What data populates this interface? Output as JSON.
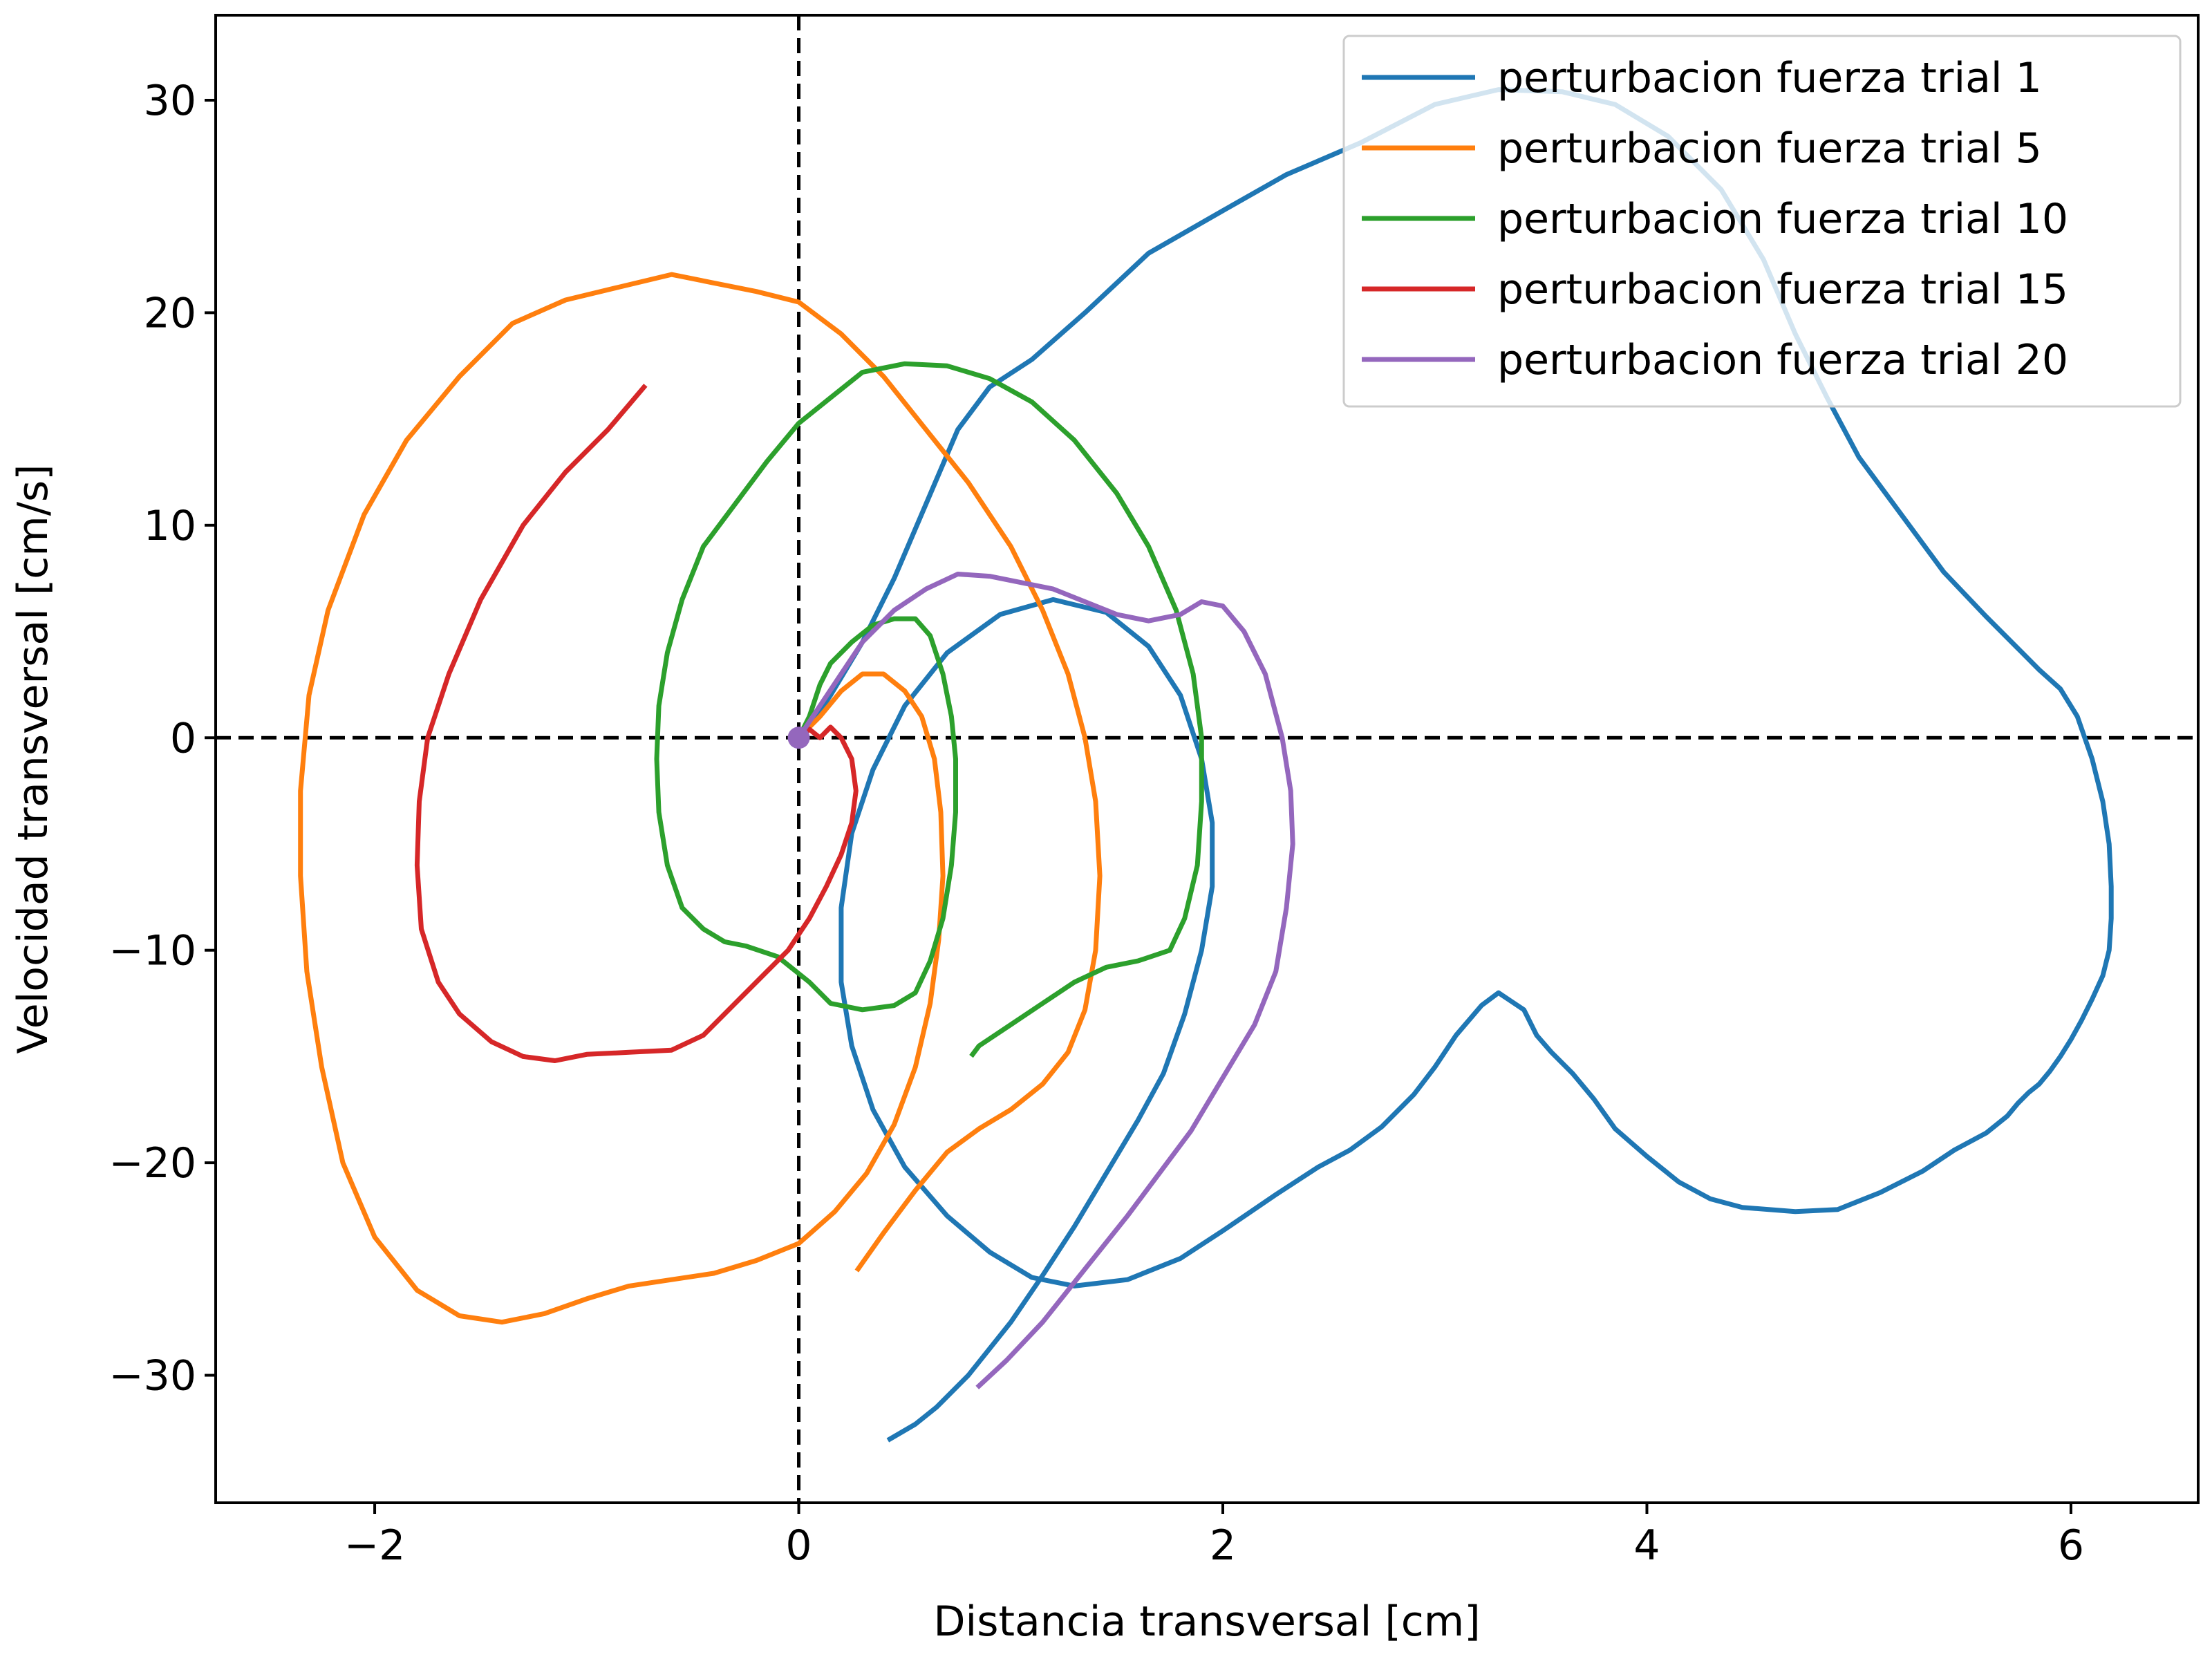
{
  "chart_data": {
    "type": "line",
    "title": "",
    "xlabel": "Distancia transversal [cm]",
    "ylabel": "Velocidad transversal [cm/s]",
    "xlim": [
      -2.75,
      6.6
    ],
    "ylim": [
      -36,
      34
    ],
    "x_ticks": [
      -2,
      0,
      2,
      4,
      6
    ],
    "x_tick_labels": [
      "−2",
      "0",
      "2",
      "4",
      "6"
    ],
    "y_ticks": [
      -30,
      -20,
      -10,
      0,
      10,
      20,
      30
    ],
    "y_tick_labels": [
      "−30",
      "−20",
      "−10",
      "0",
      "10",
      "20",
      "30"
    ],
    "grid": false,
    "reference_lines": {
      "x0": true,
      "y0": true,
      "style": "dashed",
      "color": "#000000"
    },
    "start_marker": {
      "x": 0,
      "y": 0,
      "color": "#9467bd"
    },
    "legend_position": "top-right",
    "series": [
      {
        "name": "perturbacion fuerza trial 1",
        "color": "#1f77b4",
        "points": [
          [
            0,
            0
          ],
          [
            0.05,
            0.5
          ],
          [
            0.15,
            2
          ],
          [
            0.3,
            4.5
          ],
          [
            0.45,
            7.5
          ],
          [
            0.6,
            11
          ],
          [
            0.75,
            14.5
          ],
          [
            0.9,
            16.5
          ],
          [
            1.1,
            17.8
          ],
          [
            1.35,
            20
          ],
          [
            1.65,
            22.8
          ],
          [
            2,
            24.8
          ],
          [
            2.3,
            26.5
          ],
          [
            2.65,
            28
          ],
          [
            3,
            29.8
          ],
          [
            3.3,
            30.5
          ],
          [
            3.6,
            30.4
          ],
          [
            3.85,
            29.8
          ],
          [
            4.1,
            28.3
          ],
          [
            4.35,
            25.8
          ],
          [
            4.55,
            22.5
          ],
          [
            4.7,
            19
          ],
          [
            4.85,
            16
          ],
          [
            5,
            13.2
          ],
          [
            5.2,
            10.5
          ],
          [
            5.4,
            7.8
          ],
          [
            5.6,
            5.7
          ],
          [
            5.75,
            4.2
          ],
          [
            5.85,
            3.2
          ],
          [
            5.95,
            2.3
          ],
          [
            6.03,
            1
          ],
          [
            6.1,
            -1
          ],
          [
            6.15,
            -3
          ],
          [
            6.18,
            -5
          ],
          [
            6.19,
            -7
          ],
          [
            6.19,
            -8.5
          ],
          [
            6.18,
            -10
          ],
          [
            6.15,
            -11.2
          ],
          [
            6.1,
            -12.3
          ],
          [
            6.05,
            -13.3
          ],
          [
            6,
            -14.2
          ],
          [
            5.95,
            -15
          ],
          [
            5.9,
            -15.7
          ],
          [
            5.85,
            -16.3
          ],
          [
            5.8,
            -16.7
          ],
          [
            5.75,
            -17.2
          ],
          [
            5.7,
            -17.8
          ],
          [
            5.6,
            -18.6
          ],
          [
            5.45,
            -19.4
          ],
          [
            5.3,
            -20.4
          ],
          [
            5.1,
            -21.4
          ],
          [
            4.9,
            -22.2
          ],
          [
            4.7,
            -22.3
          ],
          [
            4.45,
            -22.1
          ],
          [
            4.3,
            -21.7
          ],
          [
            4.15,
            -20.9
          ],
          [
            4,
            -19.7
          ],
          [
            3.85,
            -18.4
          ],
          [
            3.75,
            -17
          ],
          [
            3.65,
            -15.8
          ],
          [
            3.55,
            -14.8
          ],
          [
            3.48,
            -14
          ],
          [
            3.42,
            -12.8
          ],
          [
            3.36,
            -12.4
          ],
          [
            3.3,
            -12
          ],
          [
            3.22,
            -12.6
          ],
          [
            3.1,
            -14
          ],
          [
            3,
            -15.5
          ],
          [
            2.9,
            -16.8
          ],
          [
            2.75,
            -18.3
          ],
          [
            2.6,
            -19.4
          ],
          [
            2.45,
            -20.2
          ],
          [
            2.25,
            -21.5
          ],
          [
            2,
            -23.2
          ],
          [
            1.8,
            -24.5
          ],
          [
            1.55,
            -25.5
          ],
          [
            1.3,
            -25.8
          ],
          [
            1.1,
            -25.4
          ],
          [
            0.9,
            -24.2
          ],
          [
            0.7,
            -22.5
          ],
          [
            0.5,
            -20.2
          ],
          [
            0.35,
            -17.5
          ],
          [
            0.25,
            -14.5
          ],
          [
            0.2,
            -11.5
          ],
          [
            0.2,
            -8
          ],
          [
            0.25,
            -4.5
          ],
          [
            0.35,
            -1.5
          ],
          [
            0.5,
            1.5
          ],
          [
            0.7,
            4
          ],
          [
            0.95,
            5.8
          ],
          [
            1.2,
            6.5
          ],
          [
            1.45,
            5.9
          ],
          [
            1.65,
            4.3
          ],
          [
            1.8,
            2
          ],
          [
            1.9,
            -1
          ],
          [
            1.95,
            -4
          ],
          [
            1.95,
            -7
          ],
          [
            1.9,
            -10
          ],
          [
            1.82,
            -13
          ],
          [
            1.72,
            -15.8
          ],
          [
            1.6,
            -18
          ],
          [
            1.45,
            -20.5
          ],
          [
            1.3,
            -23
          ],
          [
            1.15,
            -25.3
          ],
          [
            1,
            -27.5
          ],
          [
            0.8,
            -30
          ],
          [
            0.65,
            -31.5
          ],
          [
            0.55,
            -32.3
          ],
          [
            0.43,
            -33
          ]
        ]
      },
      {
        "name": "perturbacion fuerza trial 5",
        "color": "#ff7f0e",
        "points": [
          [
            0,
            0
          ],
          [
            0.1,
            1
          ],
          [
            0.2,
            2.2
          ],
          [
            0.3,
            3
          ],
          [
            0.4,
            3
          ],
          [
            0.5,
            2.2
          ],
          [
            0.58,
            1
          ],
          [
            0.64,
            -1
          ],
          [
            0.67,
            -3.5
          ],
          [
            0.68,
            -6.5
          ],
          [
            0.66,
            -9.5
          ],
          [
            0.62,
            -12.5
          ],
          [
            0.55,
            -15.5
          ],
          [
            0.45,
            -18.2
          ],
          [
            0.32,
            -20.5
          ],
          [
            0.17,
            -22.3
          ],
          [
            0,
            -23.8
          ],
          [
            -0.2,
            -24.6
          ],
          [
            -0.4,
            -25.2
          ],
          [
            -0.6,
            -25.5
          ],
          [
            -0.8,
            -25.8
          ],
          [
            -1,
            -26.4
          ],
          [
            -1.2,
            -27.1
          ],
          [
            -1.4,
            -27.5
          ],
          [
            -1.6,
            -27.2
          ],
          [
            -1.8,
            -26
          ],
          [
            -2,
            -23.5
          ],
          [
            -2.15,
            -20
          ],
          [
            -2.25,
            -15.5
          ],
          [
            -2.32,
            -11
          ],
          [
            -2.35,
            -6.5
          ],
          [
            -2.35,
            -2.5
          ],
          [
            -2.31,
            2
          ],
          [
            -2.22,
            6
          ],
          [
            -2.05,
            10.5
          ],
          [
            -1.85,
            14
          ],
          [
            -1.6,
            17
          ],
          [
            -1.35,
            19.5
          ],
          [
            -1.1,
            20.6
          ],
          [
            -0.85,
            21.2
          ],
          [
            -0.6,
            21.8
          ],
          [
            -0.4,
            21.4
          ],
          [
            -0.2,
            21
          ],
          [
            0,
            20.5
          ],
          [
            0.2,
            19
          ],
          [
            0.4,
            17
          ],
          [
            0.6,
            14.5
          ],
          [
            0.8,
            12
          ],
          [
            1,
            9
          ],
          [
            1.15,
            6
          ],
          [
            1.27,
            3
          ],
          [
            1.35,
            0
          ],
          [
            1.4,
            -3
          ],
          [
            1.42,
            -6.5
          ],
          [
            1.4,
            -10
          ],
          [
            1.35,
            -12.8
          ],
          [
            1.27,
            -14.8
          ],
          [
            1.15,
            -16.3
          ],
          [
            1,
            -17.5
          ],
          [
            0.85,
            -18.4
          ],
          [
            0.7,
            -19.5
          ],
          [
            0.55,
            -21.3
          ],
          [
            0.4,
            -23.3
          ],
          [
            0.28,
            -25
          ]
        ]
      },
      {
        "name": "perturbacion fuerza trial 10",
        "color": "#2ca02c",
        "points": [
          [
            0,
            0
          ],
          [
            0.05,
            1
          ],
          [
            0.1,
            2.5
          ],
          [
            0.15,
            3.5
          ],
          [
            0.25,
            4.5
          ],
          [
            0.35,
            5.3
          ],
          [
            0.45,
            5.6
          ],
          [
            0.55,
            5.6
          ],
          [
            0.62,
            4.8
          ],
          [
            0.68,
            3
          ],
          [
            0.72,
            1
          ],
          [
            0.74,
            -1
          ],
          [
            0.74,
            -3.5
          ],
          [
            0.72,
            -6
          ],
          [
            0.68,
            -8.5
          ],
          [
            0.62,
            -10.5
          ],
          [
            0.55,
            -12
          ],
          [
            0.45,
            -12.6
          ],
          [
            0.3,
            -12.8
          ],
          [
            0.15,
            -12.5
          ],
          [
            0.05,
            -11.5
          ],
          [
            -0.1,
            -10.3
          ],
          [
            -0.25,
            -9.8
          ],
          [
            -0.35,
            -9.6
          ],
          [
            -0.45,
            -9
          ],
          [
            -0.55,
            -8
          ],
          [
            -0.62,
            -6
          ],
          [
            -0.66,
            -3.5
          ],
          [
            -0.67,
            -1
          ],
          [
            -0.66,
            1.5
          ],
          [
            -0.62,
            4
          ],
          [
            -0.55,
            6.5
          ],
          [
            -0.45,
            9
          ],
          [
            -0.3,
            11
          ],
          [
            -0.15,
            13
          ],
          [
            0,
            14.8
          ],
          [
            0.15,
            16
          ],
          [
            0.3,
            17.2
          ],
          [
            0.5,
            17.6
          ],
          [
            0.7,
            17.5
          ],
          [
            0.9,
            16.9
          ],
          [
            1.1,
            15.8
          ],
          [
            1.3,
            14
          ],
          [
            1.5,
            11.5
          ],
          [
            1.65,
            9
          ],
          [
            1.78,
            6
          ],
          [
            1.86,
            3
          ],
          [
            1.9,
            0
          ],
          [
            1.9,
            -3
          ],
          [
            1.88,
            -6
          ],
          [
            1.82,
            -8.5
          ],
          [
            1.75,
            -10
          ],
          [
            1.6,
            -10.5
          ],
          [
            1.45,
            -10.8
          ],
          [
            1.3,
            -11.5
          ],
          [
            1.15,
            -12.5
          ],
          [
            1,
            -13.5
          ],
          [
            0.85,
            -14.5
          ],
          [
            0.82,
            -14.9
          ]
        ]
      },
      {
        "name": "perturbacion fuerza trial 15",
        "color": "#d62728",
        "points": [
          [
            0,
            0
          ],
          [
            0.05,
            0.4
          ],
          [
            0.1,
            0
          ],
          [
            0.15,
            0.5
          ],
          [
            0.2,
            0
          ],
          [
            0.25,
            -1
          ],
          [
            0.27,
            -2.5
          ],
          [
            0.25,
            -4
          ],
          [
            0.2,
            -5.5
          ],
          [
            0.13,
            -7
          ],
          [
            0.05,
            -8.5
          ],
          [
            -0.05,
            -10
          ],
          [
            -0.15,
            -11
          ],
          [
            -0.3,
            -12.5
          ],
          [
            -0.45,
            -14
          ],
          [
            -0.6,
            -14.7
          ],
          [
            -0.8,
            -14.8
          ],
          [
            -1,
            -14.9
          ],
          [
            -1.15,
            -15.2
          ],
          [
            -1.3,
            -15
          ],
          [
            -1.45,
            -14.3
          ],
          [
            -1.6,
            -13
          ],
          [
            -1.7,
            -11.5
          ],
          [
            -1.78,
            -9
          ],
          [
            -1.8,
            -6
          ],
          [
            -1.79,
            -3
          ],
          [
            -1.75,
            0
          ],
          [
            -1.65,
            3
          ],
          [
            -1.5,
            6.5
          ],
          [
            -1.3,
            10
          ],
          [
            -1.1,
            12.5
          ],
          [
            -0.9,
            14.5
          ],
          [
            -0.73,
            16.5
          ]
        ]
      },
      {
        "name": "perturbacion fuerza trial 20",
        "color": "#9467bd",
        "points": [
          [
            0,
            0
          ],
          [
            0.1,
            1.5
          ],
          [
            0.2,
            3
          ],
          [
            0.3,
            4.5
          ],
          [
            0.45,
            6
          ],
          [
            0.6,
            7
          ],
          [
            0.75,
            7.7
          ],
          [
            0.9,
            7.6
          ],
          [
            1.05,
            7.3
          ],
          [
            1.2,
            7
          ],
          [
            1.35,
            6.4
          ],
          [
            1.5,
            5.8
          ],
          [
            1.65,
            5.5
          ],
          [
            1.8,
            5.8
          ],
          [
            1.9,
            6.4
          ],
          [
            2,
            6.2
          ],
          [
            2.1,
            5
          ],
          [
            2.2,
            3
          ],
          [
            2.28,
            0
          ],
          [
            2.32,
            -2.5
          ],
          [
            2.33,
            -5
          ],
          [
            2.3,
            -8
          ],
          [
            2.25,
            -11
          ],
          [
            2.15,
            -13.5
          ],
          [
            2,
            -16
          ],
          [
            1.85,
            -18.5
          ],
          [
            1.7,
            -20.5
          ],
          [
            1.55,
            -22.5
          ],
          [
            1.35,
            -25
          ],
          [
            1.15,
            -27.5
          ],
          [
            0.98,
            -29.3
          ],
          [
            0.85,
            -30.5
          ]
        ]
      }
    ]
  }
}
